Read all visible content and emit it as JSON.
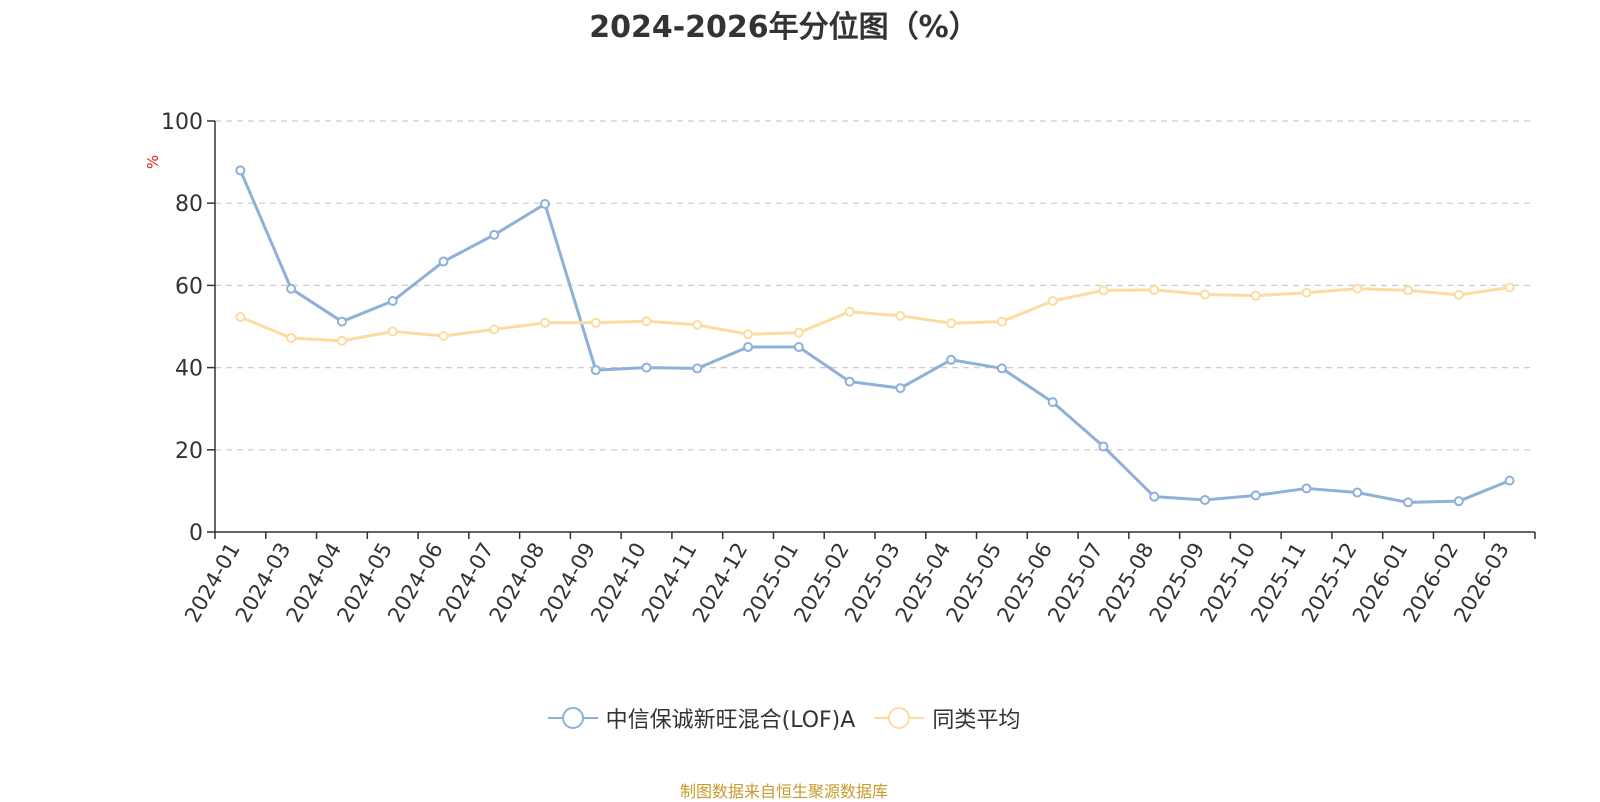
{
  "chart_data": {
    "type": "line",
    "title": "2024-2026年分位图（%）",
    "ylabel": "%",
    "ylim": [
      0,
      100
    ],
    "yticks": [
      0,
      20,
      40,
      60,
      80,
      100
    ],
    "grid": true,
    "legend_position": "bottom-center",
    "categories": [
      "2024-01",
      "2024-03",
      "2024-04",
      "2024-05",
      "2024-06",
      "2024-07",
      "2024-08",
      "2024-09",
      "2024-10",
      "2024-11",
      "2024-12",
      "2025-01",
      "2025-02",
      "2025-03",
      "2025-04",
      "2025-05",
      "2025-06",
      "2025-07",
      "2025-08",
      "2025-09",
      "2025-10",
      "2025-11",
      "2025-12",
      "2026-01",
      "2026-02",
      "2026-03"
    ],
    "series": [
      {
        "name": "中信保诚新旺混合(LOF)A",
        "color": "#8fb0d9",
        "values": [
          88.0,
          59.2,
          51.2,
          56.2,
          65.8,
          72.3,
          79.8,
          39.4,
          40.0,
          39.8,
          45.0,
          45.0,
          36.6,
          35.0,
          41.9,
          39.8,
          31.6,
          20.8,
          8.6,
          7.8,
          8.9,
          10.6,
          9.6,
          7.2,
          7.5,
          12.5
        ]
      },
      {
        "name": "同类平均",
        "color": "#fcdca0",
        "values": [
          52.3,
          47.2,
          46.5,
          48.8,
          47.7,
          49.3,
          50.9,
          50.9,
          51.3,
          50.4,
          48.1,
          48.5,
          53.6,
          52.6,
          50.8,
          51.2,
          56.2,
          58.8,
          58.9,
          57.8,
          57.5,
          58.2,
          59.2,
          58.8,
          57.7,
          59.5
        ]
      }
    ]
  },
  "footer": {
    "source_text": "制图数据来自恒生聚源数据库"
  }
}
